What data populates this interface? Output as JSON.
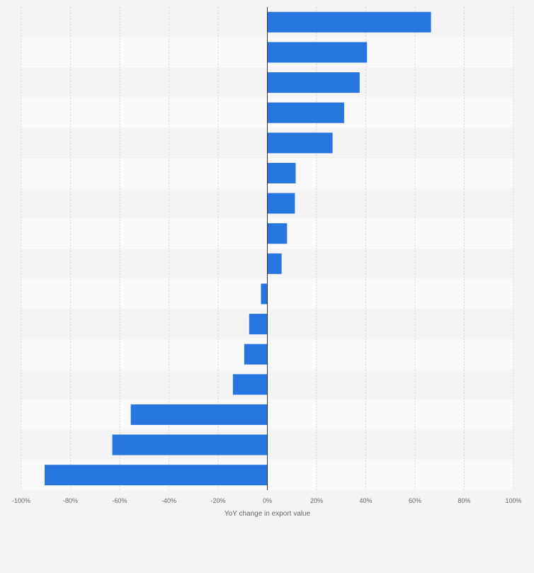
{
  "chart_data": {
    "type": "bar",
    "orientation": "horizontal",
    "xlabel": "YoY change in export value",
    "xlim": [
      -100,
      100
    ],
    "x_ticks": [
      -100,
      -80,
      -60,
      -40,
      -20,
      0,
      20,
      40,
      60,
      80,
      100
    ],
    "x_tick_labels": [
      "-100%",
      "-80%",
      "-60%",
      "-40%",
      "-20%",
      "0%",
      "20%",
      "40%",
      "60%",
      "80%",
      "100%"
    ],
    "values": [
      66.5,
      40.5,
      37.5,
      31.2,
      26.5,
      11.5,
      11.2,
      8.0,
      5.8,
      -2.6,
      -7.4,
      -9.4,
      -14.0,
      -55.5,
      -63.0,
      -90.5
    ],
    "grid": true,
    "bar_color": "#2775de",
    "band_colors": [
      "#f4f4f4",
      "#f9f9f9"
    ]
  }
}
